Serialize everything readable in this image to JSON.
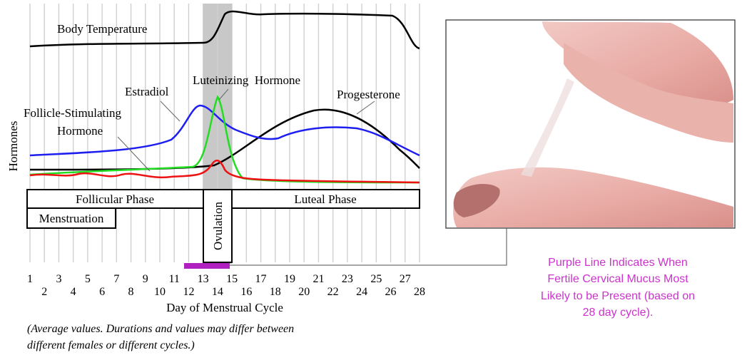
{
  "labels": {
    "body_temperature": "Body Temperature",
    "hormones_axis": "Hormones",
    "estradiol": "Estradiol",
    "luteinizing_hormone": "Luteinizing  Hormone",
    "progesterone": "Progesterone",
    "fsh_line1": "Follicle-Stimulating",
    "fsh_line2": "Hormone"
  },
  "phases": {
    "follicular": "Follicular Phase",
    "luteal": "Luteal Phase",
    "menstruation": "Menstruation",
    "ovulation": "Ovulation"
  },
  "days": [
    1,
    2,
    3,
    4,
    5,
    6,
    7,
    8,
    9,
    10,
    11,
    12,
    13,
    14,
    15,
    16,
    17,
    18,
    19,
    20,
    21,
    22,
    23,
    24,
    25,
    26,
    27,
    28
  ],
  "x_axis_title": "Day of Menstrual Cycle",
  "note": [
    "(Average values. Durations and values may differ between",
    "different females or different cycles.)"
  ],
  "caption": [
    "Purple Line Indicates When",
    "Fertile Cervical Mucus Most",
    "Likely to be Present (based on",
    "28 day cycle)."
  ]
}
